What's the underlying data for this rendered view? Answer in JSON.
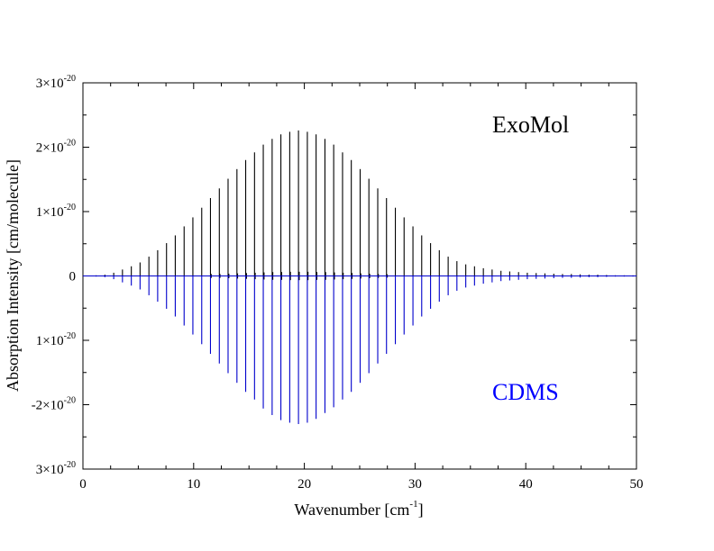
{
  "chart_data": {
    "type": "bar",
    "xlabel": "Wavenumber [cm",
    "xlabel_sup": "-1",
    "xlabel_end": "]",
    "ylabel": "Absorption Intensity [cm/molecule]",
    "xlim": [
      0,
      50
    ],
    "ylim": [
      -3e-20,
      3e-20
    ],
    "grid": false,
    "x_ticks": [
      0,
      10,
      20,
      30,
      40,
      50
    ],
    "y_ticks": [
      {
        "value": 3e-20,
        "base": "3×10",
        "exp": "-20"
      },
      {
        "value": 2e-20,
        "base": "2×10",
        "exp": "-20"
      },
      {
        "value": 1e-20,
        "base": "1×10",
        "exp": "-20"
      },
      {
        "value": 0,
        "base": "0",
        "exp": ""
      },
      {
        "value": -1e-20,
        "base": "1×10",
        "exp": "-20"
      },
      {
        "value": -2e-20,
        "base": "-2×10",
        "exp": "-20"
      },
      {
        "value": -3e-20,
        "base": "3×10",
        "exp": "-20"
      }
    ],
    "series": [
      {
        "name": "ExoMol",
        "color": "#000000",
        "direction": "up",
        "x": [
          1.19,
          1.98,
          2.78,
          3.57,
          4.37,
          5.16,
          5.96,
          6.75,
          7.55,
          8.34,
          9.14,
          9.93,
          10.73,
          11.52,
          12.32,
          13.11,
          13.91,
          14.7,
          15.5,
          16.29,
          17.09,
          17.88,
          18.68,
          19.47,
          20.27,
          21.06,
          21.86,
          22.65,
          23.45,
          24.24,
          25.04,
          25.83,
          26.63,
          27.42,
          28.22,
          29.01,
          29.81,
          30.6,
          31.4,
          32.19,
          32.99,
          33.78,
          34.58,
          35.37,
          36.17,
          36.96,
          37.76,
          38.55,
          39.35,
          40.14,
          40.94,
          41.73,
          42.53,
          43.32,
          44.12,
          44.91,
          45.71,
          46.5,
          47.3,
          48.09,
          48.89,
          49.68
        ],
        "values": [
          1e-22,
          2e-22,
          5e-22,
          1e-21,
          1.5e-21,
          2.1e-21,
          3e-21,
          4e-21,
          5.1e-21,
          6.3e-21,
          7.7e-21,
          9.1e-21,
          1.06e-20,
          1.21e-20,
          1.36e-20,
          1.51e-20,
          1.66e-20,
          1.8e-20,
          1.92e-20,
          2.04e-20,
          2.13e-20,
          2.2e-20,
          2.24e-20,
          2.26e-20,
          2.24e-20,
          2.2e-20,
          2.13e-20,
          2.04e-20,
          1.92e-20,
          1.8e-20,
          1.66e-20,
          1.51e-20,
          1.36e-20,
          1.21e-20,
          1.06e-20,
          9.1e-21,
          7.7e-21,
          6.3e-21,
          5.1e-21,
          4e-21,
          3e-21,
          2.3e-21,
          1.8e-21,
          1.5e-21,
          1.2e-21,
          1e-21,
          8e-22,
          7e-22,
          6e-22,
          5e-22,
          4.5e-22,
          4e-22,
          3.5e-22,
          3e-22,
          3e-22,
          2.5e-22,
          2e-22,
          2e-22,
          1.5e-22,
          1e-22,
          1e-22,
          1e-22
        ]
      },
      {
        "name": "CDMS",
        "color": "#0000cc",
        "direction": "down",
        "x": [
          1.19,
          1.98,
          2.78,
          3.57,
          4.37,
          5.16,
          5.96,
          6.75,
          7.55,
          8.34,
          9.14,
          9.93,
          10.73,
          11.52,
          12.32,
          13.11,
          13.91,
          14.7,
          15.5,
          16.29,
          17.09,
          17.88,
          18.68,
          19.47,
          20.27,
          21.06,
          21.86,
          22.65,
          23.45,
          24.24,
          25.04,
          25.83,
          26.63,
          27.42,
          28.22,
          29.01,
          29.81,
          30.6,
          31.4,
          32.19,
          32.99,
          33.78,
          34.58,
          35.37,
          36.17,
          36.96,
          37.76,
          38.55,
          39.35,
          40.14,
          40.94,
          41.73,
          42.53,
          43.32,
          44.12,
          44.91,
          45.71,
          46.5,
          47.3,
          48.09,
          48.89,
          49.68
        ],
        "values": [
          1e-22,
          2e-22,
          5e-22,
          1e-21,
          1.5e-21,
          2.1e-21,
          3e-21,
          4e-21,
          5.1e-21,
          6.3e-21,
          7.7e-21,
          9.1e-21,
          1.06e-20,
          1.21e-20,
          1.36e-20,
          1.51e-20,
          1.66e-20,
          1.8e-20,
          1.92e-20,
          2.06e-20,
          2.16e-20,
          2.24e-20,
          2.28e-20,
          2.3e-20,
          2.28e-20,
          2.22e-20,
          2.13e-20,
          2.04e-20,
          1.92e-20,
          1.8e-20,
          1.66e-20,
          1.51e-20,
          1.36e-20,
          1.21e-20,
          1.06e-20,
          9.1e-21,
          7.7e-21,
          6.3e-21,
          5.1e-21,
          4e-21,
          3e-21,
          2.3e-21,
          1.8e-21,
          1.5e-21,
          1.2e-21,
          1e-21,
          8e-22,
          7e-22,
          6e-22,
          5e-22,
          4.5e-22,
          4e-22,
          3.5e-22,
          3e-22,
          3e-22,
          2.5e-22,
          2e-22,
          2e-22,
          1.5e-22,
          1e-22,
          1e-22,
          1e-22
        ]
      },
      {
        "name": "",
        "color": "#000000",
        "direction": "both",
        "x": [
          11.59,
          12.38,
          13.18,
          13.97,
          14.77,
          15.56,
          16.36,
          17.15,
          17.95,
          18.74,
          19.54,
          20.33,
          21.13,
          21.92,
          22.72,
          23.51,
          24.31,
          25.1,
          25.9,
          26.69,
          27.49
        ],
        "values": [
          3e-22,
          3e-22,
          3.5e-22,
          4e-22,
          4.5e-22,
          5e-22,
          5.5e-22,
          6e-22,
          6e-22,
          6.5e-22,
          6.5e-22,
          6.5e-22,
          6e-22,
          6e-22,
          5.5e-22,
          5e-22,
          4.5e-22,
          4e-22,
          3.5e-22,
          3e-22,
          2.5e-22
        ]
      }
    ],
    "annotations": [
      {
        "text": "ExoMol",
        "color": "#000000"
      },
      {
        "text": "CDMS",
        "color": "#0000ff"
      }
    ]
  }
}
